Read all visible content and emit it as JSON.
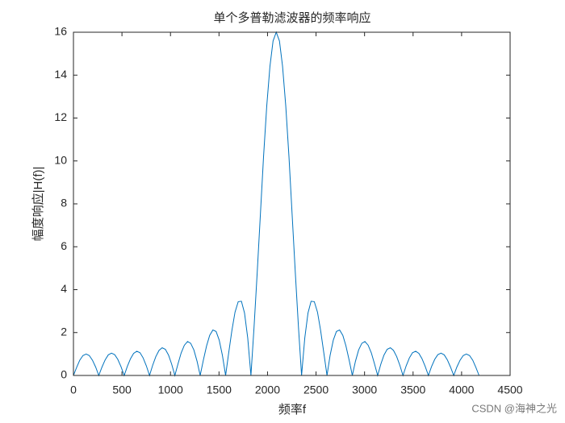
{
  "chart_data": {
    "type": "line",
    "title": "单个多普勒滤波器的频率响应",
    "xlabel": "频率f",
    "ylabel": "幅度响应|H(f)|",
    "watermark": "CSDN @海神之光",
    "color": "#0072bd",
    "xlim": [
      0,
      4500
    ],
    "xticks": [
      0,
      500,
      1000,
      1500,
      2000,
      2500,
      3000,
      3500,
      4000,
      4500
    ],
    "ylim": [
      0,
      16
    ],
    "yticks": [
      0,
      2,
      4,
      6,
      8,
      10,
      12,
      14,
      16
    ],
    "grid": false,
    "box": true,
    "x": [
      0,
      33,
      65,
      98,
      131,
      163,
      196,
      229,
      261,
      294,
      327,
      359,
      392,
      425,
      457,
      490,
      523,
      555,
      588,
      620,
      653,
      686,
      718,
      751,
      784,
      816,
      849,
      882,
      914,
      947,
      980,
      1012,
      1045,
      1078,
      1110,
      1143,
      1176,
      1208,
      1241,
      1274,
      1306,
      1339,
      1372,
      1404,
      1437,
      1470,
      1502,
      1535,
      1568,
      1600,
      1633,
      1665,
      1698,
      1731,
      1763,
      1796,
      1829,
      1861,
      1894,
      1927,
      1959,
      1992,
      2025,
      2057,
      2090,
      2123,
      2155,
      2188,
      2221,
      2253,
      2286,
      2319,
      2351,
      2384,
      2417,
      2449,
      2482,
      2515,
      2547,
      2580,
      2613,
      2645,
      2678,
      2710,
      2743,
      2776,
      2808,
      2841,
      2874,
      2906,
      2939,
      2972,
      3004,
      3037,
      3070,
      3102,
      3135,
      3168,
      3200,
      3233,
      3266,
      3298,
      3331,
      3364,
      3396,
      3429,
      3462,
      3494,
      3527,
      3560,
      3592,
      3625,
      3658,
      3690,
      3723,
      3755,
      3788,
      3821,
      3853,
      3886,
      3919,
      3951,
      3984,
      4017,
      4049,
      4082,
      4115,
      4147,
      4180
    ],
    "values": [
      0,
      0.38,
      0.71,
      0.93,
      1.0,
      0.93,
      0.71,
      0.39,
      0,
      0.39,
      0.73,
      0.96,
      1.04,
      0.97,
      0.75,
      0.41,
      0,
      0.42,
      0.78,
      1.03,
      1.13,
      1.06,
      0.82,
      0.45,
      0,
      0.47,
      0.88,
      1.17,
      1.29,
      1.22,
      0.95,
      0.53,
      0,
      0.55,
      1.05,
      1.41,
      1.58,
      1.5,
      1.19,
      0.66,
      0,
      0.72,
      1.38,
      1.87,
      2.12,
      2.05,
      1.65,
      0.94,
      0,
      1.06,
      2.1,
      2.95,
      3.44,
      3.46,
      2.91,
      1.75,
      0,
      2.24,
      4.82,
      7.55,
      10.2,
      12.56,
      14.41,
      15.59,
      16,
      15.59,
      14.41,
      12.56,
      10.2,
      7.55,
      4.82,
      2.24,
      0,
      1.75,
      2.91,
      3.46,
      3.44,
      2.95,
      2.1,
      1.06,
      0,
      0.94,
      1.65,
      2.05,
      2.12,
      1.87,
      1.38,
      0.72,
      0,
      0.66,
      1.19,
      1.5,
      1.58,
      1.41,
      1.05,
      0.55,
      0,
      0.53,
      0.95,
      1.22,
      1.29,
      1.17,
      0.88,
      0.47,
      0,
      0.45,
      0.82,
      1.06,
      1.13,
      1.03,
      0.78,
      0.42,
      0,
      0.41,
      0.75,
      0.97,
      1.04,
      0.96,
      0.73,
      0.39,
      0,
      0.39,
      0.71,
      0.93,
      1.0,
      0.93,
      0.71,
      0.38,
      0
    ]
  }
}
